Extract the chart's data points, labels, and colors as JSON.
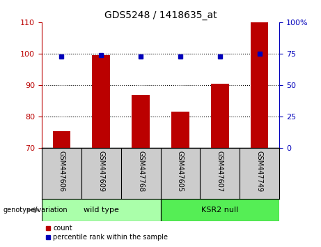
{
  "title": "GDS5248 / 1418635_at",
  "samples": [
    "GSM447606",
    "GSM447609",
    "GSM447768",
    "GSM447605",
    "GSM447607",
    "GSM447749"
  ],
  "bar_values": [
    75.5,
    99.5,
    87.0,
    81.5,
    90.5,
    110.0
  ],
  "percentile_values": [
    72.5,
    74.0,
    72.5,
    72.5,
    72.5,
    75.0
  ],
  "ylim_left": [
    70,
    110
  ],
  "ylim_right": [
    0,
    100
  ],
  "yticks_left": [
    70,
    80,
    90,
    100,
    110
  ],
  "yticks_right": [
    0,
    25,
    50,
    75,
    100
  ],
  "bar_color": "#bb0000",
  "percentile_color": "#0000bb",
  "grid_lines": [
    80,
    90,
    100
  ],
  "groups": [
    {
      "label": "wild type",
      "indices": [
        0,
        1,
        2
      ],
      "color": "#aaffaa"
    },
    {
      "label": "KSR2 null",
      "indices": [
        3,
        4,
        5
      ],
      "color": "#55ee55"
    }
  ],
  "group_label": "genotype/variation",
  "legend_count": "count",
  "legend_percentile": "percentile rank within the sample",
  "tick_label_area_color": "#cccccc",
  "background_color": "#ffffff"
}
